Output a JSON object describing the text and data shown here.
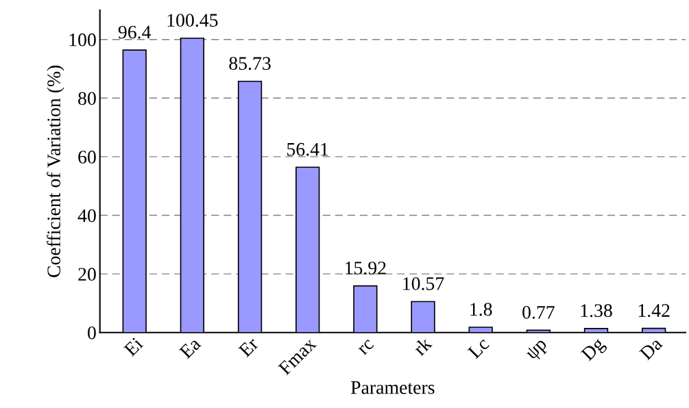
{
  "chart_data": {
    "type": "bar",
    "xlabel": "Parameters",
    "ylabel": "Coefficient of Variation (%)",
    "categories": [
      "Ei",
      "Ea",
      "Er",
      "Fmax",
      "rc",
      "rk",
      "Lc",
      "ψp",
      "Dg",
      "Da"
    ],
    "values": [
      96.4,
      100.45,
      85.73,
      56.41,
      15.92,
      10.57,
      1.8,
      0.77,
      1.38,
      1.42
    ],
    "color": "#9999ff",
    "ylim": [
      0,
      110
    ],
    "yticks": [
      0,
      20,
      40,
      60,
      80,
      100
    ],
    "grid": "y",
    "data_labels": true
  }
}
